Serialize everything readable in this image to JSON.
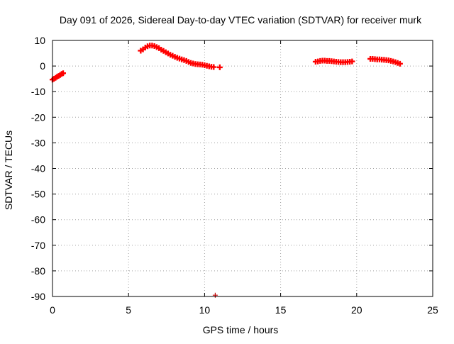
{
  "chart_data": {
    "type": "scatter",
    "title": "Day 091 of 2026, Sidereal Day-to-day VTEC variation (SDTVAR) for receiver murk",
    "xlabel": "GPS time / hours",
    "ylabel": "SDTVAR / TECUs",
    "xlim": [
      0,
      25
    ],
    "ylim": [
      -90,
      10
    ],
    "xticks": [
      0,
      5,
      10,
      15,
      20,
      25
    ],
    "yticks": [
      10,
      0,
      -10,
      -20,
      -30,
      -40,
      -50,
      -60,
      -70,
      -80,
      -90
    ],
    "grid": true,
    "marker": "plus",
    "colors": {
      "main": "#ff0000",
      "outlier": "#c00000"
    },
    "series": [
      {
        "values": [
          {
            "x": 0.0,
            "y": -5.3
          },
          {
            "x": 0.1,
            "y": -5.0
          },
          {
            "x": 0.2,
            "y": -4.6
          },
          {
            "x": 0.3,
            "y": -4.2
          },
          {
            "x": 0.4,
            "y": -3.9
          },
          {
            "x": 0.5,
            "y": -3.5
          },
          {
            "x": 0.6,
            "y": -3.1
          },
          {
            "x": 0.7,
            "y": -2.8
          },
          {
            "x": 5.8,
            "y": 6.0
          },
          {
            "x": 5.95,
            "y": 6.5
          },
          {
            "x": 6.1,
            "y": 7.2
          },
          {
            "x": 6.25,
            "y": 7.7
          },
          {
            "x": 6.4,
            "y": 8.0
          },
          {
            "x": 6.55,
            "y": 8.0
          },
          {
            "x": 6.7,
            "y": 7.8
          },
          {
            "x": 6.85,
            "y": 7.4
          },
          {
            "x": 7.0,
            "y": 7.0
          },
          {
            "x": 7.15,
            "y": 6.4
          },
          {
            "x": 7.3,
            "y": 5.9
          },
          {
            "x": 7.45,
            "y": 5.4
          },
          {
            "x": 7.6,
            "y": 4.9
          },
          {
            "x": 7.75,
            "y": 4.4
          },
          {
            "x": 7.9,
            "y": 4.0
          },
          {
            "x": 8.05,
            "y": 3.6
          },
          {
            "x": 8.2,
            "y": 3.2
          },
          {
            "x": 8.35,
            "y": 2.9
          },
          {
            "x": 8.5,
            "y": 2.6
          },
          {
            "x": 8.65,
            "y": 2.3
          },
          {
            "x": 8.8,
            "y": 2.0
          },
          {
            "x": 8.95,
            "y": 1.6
          },
          {
            "x": 9.1,
            "y": 1.2
          },
          {
            "x": 9.25,
            "y": 1.0
          },
          {
            "x": 9.4,
            "y": 0.8
          },
          {
            "x": 9.55,
            "y": 0.7
          },
          {
            "x": 9.7,
            "y": 0.6
          },
          {
            "x": 9.85,
            "y": 0.5
          },
          {
            "x": 10.0,
            "y": 0.3
          },
          {
            "x": 10.15,
            "y": 0.1
          },
          {
            "x": 10.3,
            "y": -0.1
          },
          {
            "x": 10.45,
            "y": -0.3
          },
          {
            "x": 10.6,
            "y": -0.4
          },
          {
            "x": 11.0,
            "y": -0.5
          },
          {
            "x": 17.3,
            "y": 1.7
          },
          {
            "x": 17.45,
            "y": 1.8
          },
          {
            "x": 17.6,
            "y": 2.0
          },
          {
            "x": 17.75,
            "y": 2.1
          },
          {
            "x": 17.9,
            "y": 2.1
          },
          {
            "x": 18.05,
            "y": 2.0
          },
          {
            "x": 18.2,
            "y": 2.0
          },
          {
            "x": 18.35,
            "y": 1.9
          },
          {
            "x": 18.5,
            "y": 1.8
          },
          {
            "x": 18.65,
            "y": 1.7
          },
          {
            "x": 18.8,
            "y": 1.6
          },
          {
            "x": 18.95,
            "y": 1.5
          },
          {
            "x": 19.1,
            "y": 1.5
          },
          {
            "x": 19.25,
            "y": 1.5
          },
          {
            "x": 19.4,
            "y": 1.6
          },
          {
            "x": 19.55,
            "y": 1.7
          },
          {
            "x": 19.7,
            "y": 1.8
          },
          {
            "x": 20.9,
            "y": 2.8
          },
          {
            "x": 21.05,
            "y": 2.8
          },
          {
            "x": 21.2,
            "y": 2.7
          },
          {
            "x": 21.35,
            "y": 2.6
          },
          {
            "x": 21.5,
            "y": 2.6
          },
          {
            "x": 21.65,
            "y": 2.5
          },
          {
            "x": 21.8,
            "y": 2.4
          },
          {
            "x": 21.95,
            "y": 2.3
          },
          {
            "x": 22.1,
            "y": 2.2
          },
          {
            "x": 22.25,
            "y": 2.0
          },
          {
            "x": 22.4,
            "y": 1.8
          },
          {
            "x": 22.55,
            "y": 1.5
          },
          {
            "x": 22.7,
            "y": 1.2
          },
          {
            "x": 22.85,
            "y": 0.9
          }
        ]
      },
      {
        "values": [
          {
            "x": 10.7,
            "y": -89.5
          }
        ]
      }
    ]
  }
}
